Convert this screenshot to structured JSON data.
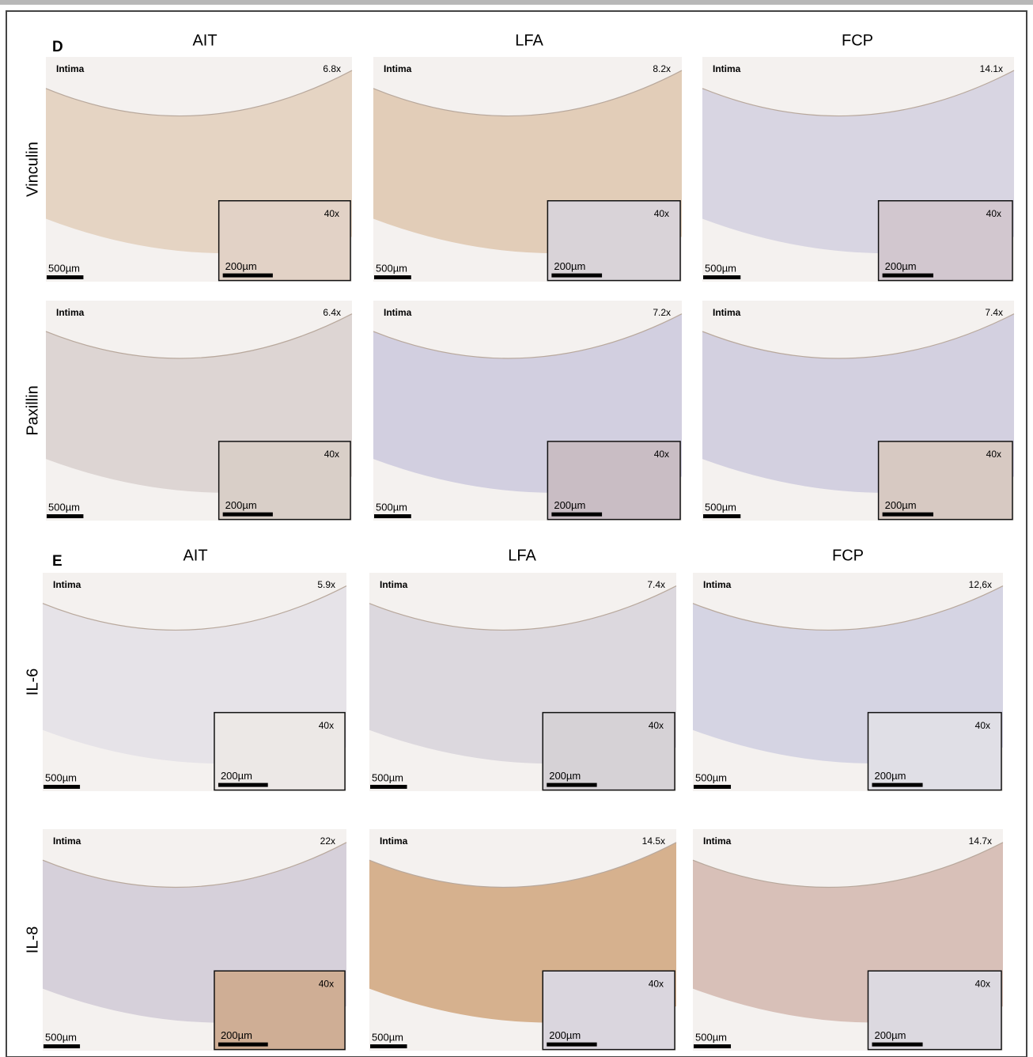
{
  "panels": [
    {
      "letter": "D",
      "columns": [
        "AIT",
        "LFA",
        "FCP"
      ],
      "rows": [
        {
          "label": "Vinculin",
          "tiles": [
            {
              "region": "Intima",
              "magnification": "6.8x",
              "inset_magnification": "40x",
              "scale_bar": "500µm",
              "inset_scale_bar": "200µm"
            },
            {
              "region": "Intima",
              "magnification": "8.2x",
              "inset_magnification": "40x",
              "scale_bar": "500µm",
              "inset_scale_bar": "200µm"
            },
            {
              "region": "Intima",
              "magnification": "14.1x",
              "inset_magnification": "40x",
              "scale_bar": "500µm",
              "inset_scale_bar": "200µm"
            }
          ]
        },
        {
          "label": "Paxillin",
          "tiles": [
            {
              "region": "Intima",
              "magnification": "6.4x",
              "inset_magnification": "40x",
              "scale_bar": "500µm",
              "inset_scale_bar": "200µm"
            },
            {
              "region": "Intima",
              "magnification": "7.2x",
              "inset_magnification": "40x",
              "scale_bar": "500µm",
              "inset_scale_bar": "200µm"
            },
            {
              "region": "Intima",
              "magnification": "7.4x",
              "inset_magnification": "40x",
              "scale_bar": "500µm",
              "inset_scale_bar": "200µm"
            }
          ]
        }
      ]
    },
    {
      "letter": "E",
      "columns": [
        "AIT",
        "LFA",
        "FCP"
      ],
      "rows": [
        {
          "label": "IL-6",
          "tiles": [
            {
              "region": "Intima",
              "magnification": "5.9x",
              "inset_magnification": "40x",
              "scale_bar": "500µm",
              "inset_scale_bar": "200µm"
            },
            {
              "region": "Intima",
              "magnification": "7.4x",
              "inset_magnification": "40x",
              "scale_bar": "500µm",
              "inset_scale_bar": "200µm"
            },
            {
              "region": "Intima",
              "magnification": "12,6x",
              "inset_magnification": "40x",
              "scale_bar": "500µm",
              "inset_scale_bar": "200µm"
            }
          ]
        },
        {
          "label": "IL-8",
          "tiles": [
            {
              "region": "Intima",
              "magnification": "22x",
              "inset_magnification": "40x",
              "scale_bar": "500µm",
              "inset_scale_bar": "200µm"
            },
            {
              "region": "Intima",
              "magnification": "14.5x",
              "inset_magnification": "40x",
              "scale_bar": "500µm",
              "inset_scale_bar": "200µm"
            },
            {
              "region": "Intima",
              "magnification": "14.7x",
              "inset_magnification": "40x",
              "scale_bar": "500µm",
              "inset_scale_bar": "200µm"
            }
          ]
        }
      ]
    }
  ]
}
